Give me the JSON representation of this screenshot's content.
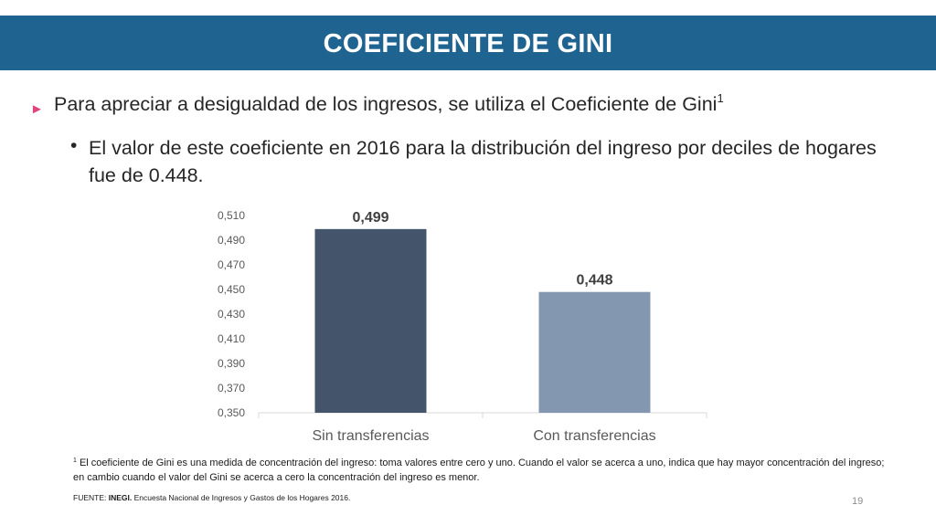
{
  "slide": {
    "title": "COEFICIENTE DE GINI",
    "bullet_arrow": "►",
    "bullet1_text": "Para apreciar a desigualdad de los ingresos, se utiliza el Coeficiente de Gini",
    "bullet1_sup": "1",
    "sub_bullet_marker": "•",
    "sub_bullet_text": "El valor de este coeficiente en 2016 para la distribución del ingreso por deciles de hogares fue de 0.448.",
    "footnote_marker": "1",
    "footnote_text": " El coeficiente de Gini es una medida de concentración del ingreso: toma valores entre cero y uno. Cuando el valor se acerca a uno, indica que hay mayor concentración del ingreso; en cambio cuando el valor del Gini se acerca a cero la concentración del ingreso es menor.",
    "source_label": "FUENTE: ",
    "source_org": "INEGI.",
    "source_text": " Encuesta Nacional de Ingresos y Gastos de los Hogares 2016.",
    "page_number": "19"
  },
  "chart_data": {
    "type": "bar",
    "title": "",
    "xlabel": "",
    "ylabel": "",
    "categories": [
      "Sin transferencias",
      "Con transferencias"
    ],
    "values": [
      0.499,
      0.448
    ],
    "value_labels": [
      "0,499",
      "0,448"
    ],
    "ylim": [
      0.35,
      0.51
    ],
    "yticks": [
      0.35,
      0.37,
      0.39,
      0.41,
      0.43,
      0.45,
      0.47,
      0.49,
      0.51
    ],
    "ytick_labels": [
      "0,350",
      "0,370",
      "0,390",
      "0,410",
      "0,430",
      "0,450",
      "0,470",
      "0,490",
      "0,510"
    ],
    "bar_colors": [
      "#44546a",
      "#8497b0"
    ],
    "grid": false,
    "legend": "none"
  },
  "colors": {
    "title_bar": "#1f6391",
    "title_text": "#ffffff",
    "bullet_arrow": "#e0457b",
    "axis_line": "#d9d9d9",
    "tick_label": "#595959",
    "data_label": "#404040"
  }
}
